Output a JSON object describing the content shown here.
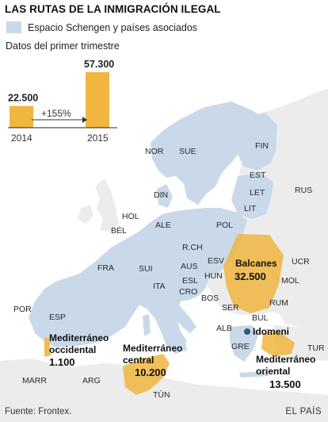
{
  "header": {
    "title": "LAS RUTAS DE LA INMIGRACIÓN ILEGAL",
    "legend_label": "Espacio Schengen y países asociados",
    "subtitle": "Datos del primer trimestre"
  },
  "chart_data": {
    "type": "bar",
    "categories": [
      "2014",
      "2015"
    ],
    "values": [
      22500,
      57300
    ],
    "value_labels": [
      "22.500",
      "57.300"
    ],
    "change_label": "+155%",
    "ylim": [
      0,
      57300
    ]
  },
  "countries": [
    "NOR",
    "SUE",
    "FIN",
    "RUS",
    "EST",
    "LET",
    "LIT",
    "DIN",
    "HOL",
    "BÉL",
    "ALE",
    "POL",
    "R.CH",
    "ESV",
    "AUS",
    "HUN",
    "UCR",
    "MOL",
    "FRA",
    "SUI",
    "ESL",
    "CRO",
    "BOS",
    "RUM",
    "SER",
    "BUL",
    "ITA",
    "ALB",
    "GRE",
    "TUR",
    "POR",
    "ESP",
    "MARR",
    "ARG",
    "TÚN"
  ],
  "routes": [
    {
      "name": "Balcanes",
      "value": "32.500"
    },
    {
      "name_lines": [
        "Mediterráneo",
        "occidental"
      ],
      "value": "1.100"
    },
    {
      "name_lines": [
        "Mediterráneo",
        "central"
      ],
      "value": "10.200"
    },
    {
      "name_lines": [
        "Mediterráneo",
        "oriental"
      ],
      "value": "13.500"
    }
  ],
  "places": {
    "idomeni": "Idomeni"
  },
  "colors": {
    "schengen": "#c9d9ea",
    "non_schengen": "#ececec",
    "sea": "#ffffff",
    "route": "#f0b640",
    "point": "#2d5b7a"
  },
  "footer": {
    "source": "Fuente: Frontex.",
    "brand": "EL PAÍS"
  }
}
